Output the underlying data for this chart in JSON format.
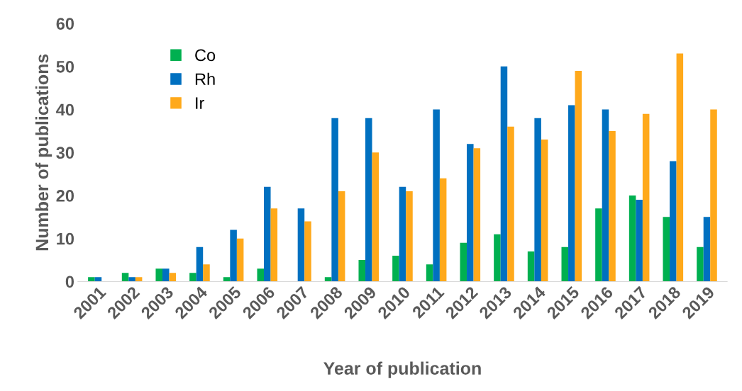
{
  "chart_data": {
    "type": "bar",
    "xlabel": "Year of publication",
    "ylabel": "Number of publications",
    "categories": [
      "2001",
      "2002",
      "2003",
      "2004",
      "2005",
      "2006",
      "2007",
      "2008",
      "2009",
      "2010",
      "2011",
      "2012",
      "2013",
      "2014",
      "2015",
      "2016",
      "2017",
      "2018",
      "2019"
    ],
    "series": [
      {
        "name": "Co",
        "color": "#00b050",
        "values": [
          1,
          2,
          3,
          2,
          1,
          3,
          0,
          1,
          5,
          6,
          4,
          9,
          11,
          7,
          8,
          17,
          20,
          15,
          8
        ]
      },
      {
        "name": "Rh",
        "color": "#0070c0",
        "values": [
          1,
          1,
          3,
          8,
          12,
          22,
          17,
          38,
          38,
          22,
          40,
          32,
          50,
          38,
          41,
          40,
          19,
          28,
          15
        ]
      },
      {
        "name": "Ir",
        "color": "#ffa91b",
        "values": [
          0,
          1,
          2,
          4,
          10,
          17,
          14,
          21,
          30,
          21,
          24,
          31,
          36,
          33,
          49,
          35,
          39,
          53,
          40
        ]
      }
    ],
    "ylim": [
      0,
      60
    ],
    "yticks": [
      0,
      10,
      20,
      30,
      40,
      50,
      60
    ],
    "grid": false,
    "legend": "top left"
  }
}
